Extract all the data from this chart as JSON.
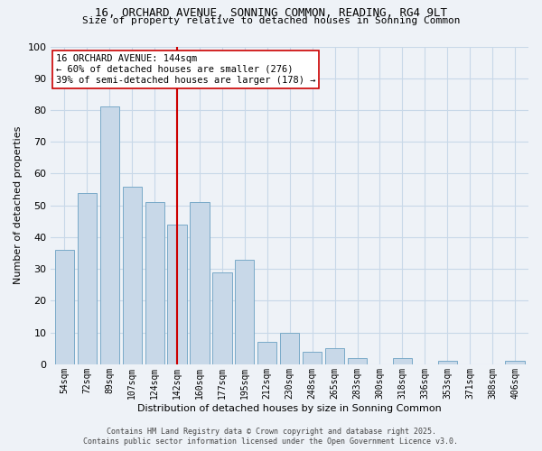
{
  "title_line1": "16, ORCHARD AVENUE, SONNING COMMON, READING, RG4 9LT",
  "title_line2": "Size of property relative to detached houses in Sonning Common",
  "xlabel": "Distribution of detached houses by size in Sonning Common",
  "ylabel": "Number of detached properties",
  "categories": [
    "54sqm",
    "72sqm",
    "89sqm",
    "107sqm",
    "124sqm",
    "142sqm",
    "160sqm",
    "177sqm",
    "195sqm",
    "212sqm",
    "230sqm",
    "248sqm",
    "265sqm",
    "283sqm",
    "300sqm",
    "318sqm",
    "336sqm",
    "353sqm",
    "371sqm",
    "388sqm",
    "406sqm"
  ],
  "values": [
    36,
    54,
    81,
    56,
    51,
    44,
    51,
    29,
    33,
    7,
    10,
    4,
    5,
    2,
    0,
    2,
    0,
    1,
    0,
    0,
    1
  ],
  "bar_color": "#c8d8e8",
  "bar_edge_color": "#7aaac8",
  "vline_x_index": 5,
  "vline_color": "#cc0000",
  "annotation_line1": "16 ORCHARD AVENUE: 144sqm",
  "annotation_line2": "← 60% of detached houses are smaller (276)",
  "annotation_line3": "39% of semi-detached houses are larger (178) →",
  "annotation_box_color": "#ffffff",
  "annotation_box_edge": "#cc0000",
  "ylim": [
    0,
    100
  ],
  "yticks": [
    0,
    10,
    20,
    30,
    40,
    50,
    60,
    70,
    80,
    90,
    100
  ],
  "grid_color": "#c8d8e8",
  "background_color": "#eef2f7",
  "footer_line1": "Contains HM Land Registry data © Crown copyright and database right 2025.",
  "footer_line2": "Contains public sector information licensed under the Open Government Licence v3.0."
}
